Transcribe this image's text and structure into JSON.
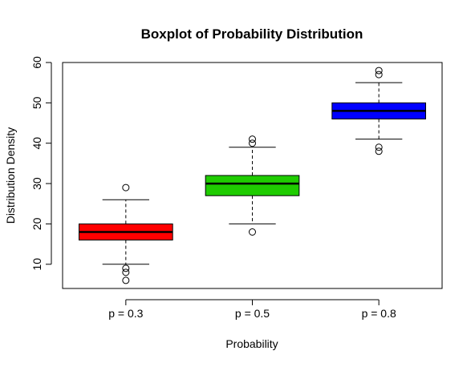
{
  "chart_data": {
    "type": "boxplot",
    "title": "Boxplot of Probability Distribution",
    "xlabel": "Probability",
    "ylabel": "Distribution Density",
    "categories": [
      "p = 0.3",
      "p = 0.5",
      "p = 0.8"
    ],
    "ylim": [
      4,
      60
    ],
    "yticks": [
      10,
      20,
      30,
      40,
      50,
      60
    ],
    "grid": false,
    "boxes": [
      {
        "category": "p = 0.3",
        "color": "#ff0000",
        "whisker_low": 10,
        "q1": 16,
        "median": 18,
        "q3": 20,
        "whisker_high": 26,
        "outliers": [
          29,
          9,
          8,
          6
        ]
      },
      {
        "category": "p = 0.5",
        "color": "#1fcc00",
        "whisker_low": 20,
        "q1": 27,
        "median": 30,
        "q3": 32,
        "whisker_high": 39,
        "outliers": [
          41,
          40,
          18
        ]
      },
      {
        "category": "p = 0.8",
        "color": "#0000ff",
        "whisker_low": 41,
        "q1": 46,
        "median": 48,
        "q3": 50,
        "whisker_high": 55,
        "outliers": [
          58,
          57,
          39,
          38
        ]
      }
    ]
  }
}
